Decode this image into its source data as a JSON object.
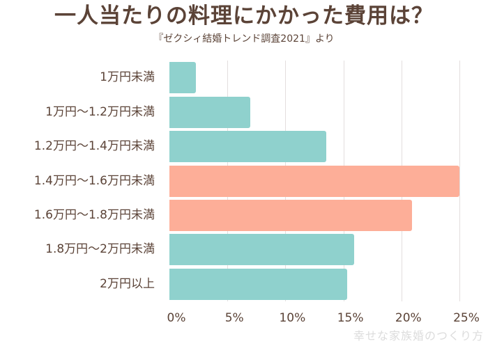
{
  "header": {
    "title": "一人当たりの料理にかかった費用は？",
    "subtitle": "『ゼクシィ結婚トレンド調査2021』より"
  },
  "watermark": "幸せな家族婚のつくり方",
  "colors": {
    "text": "#5b4337",
    "bar_default": "#8fd1cd",
    "bar_highlight": "#fdae98",
    "gridline": "#e3dede",
    "watermark": "#dcdcdc"
  },
  "chart_data": {
    "type": "bar",
    "orientation": "horizontal",
    "title": "一人当たりの料理にかかった費用は？",
    "subtitle": "『ゼクシィ結婚トレンド調査2021』より",
    "xlabel": "",
    "ylabel": "",
    "categories": [
      "1万円未満",
      "1万円～1.2万円未満",
      "1.2万円～1.4万円未満",
      "1.4万円～1.6万円未満",
      "1.6万円～1.8万円未満",
      "1.8万円～2万円未満",
      "2万円以上"
    ],
    "values": [
      2.3,
      7.0,
      13.5,
      25.0,
      20.9,
      15.9,
      15.3
    ],
    "unit": "%",
    "highlighted": [
      false,
      false,
      false,
      true,
      true,
      false,
      false
    ],
    "xlim": [
      0,
      25
    ],
    "xticks": [
      "0%",
      "5%",
      "10%",
      "15%",
      "20%",
      "25%"
    ],
    "xtick_values": [
      0,
      5,
      10,
      15,
      20,
      25
    ],
    "grid": "vertical",
    "legend": null
  }
}
